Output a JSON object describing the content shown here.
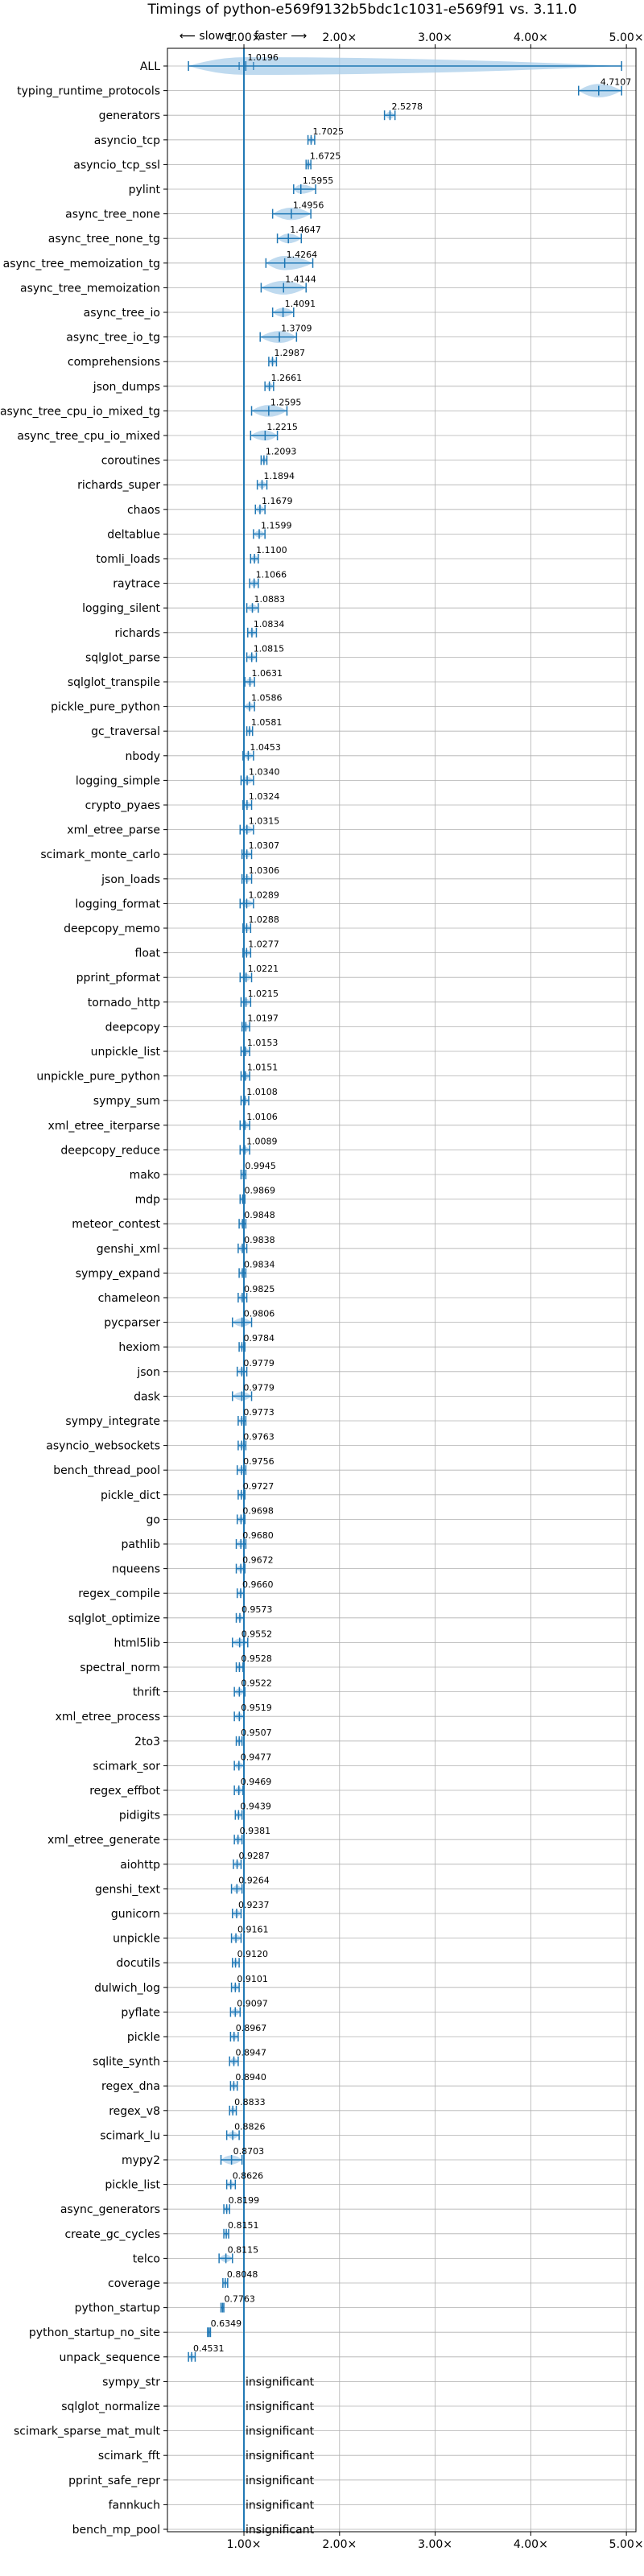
{
  "chart_data": {
    "type": "violin",
    "title": "Timings of python-e569f9132b5bdc1c1031-e569f91 vs. 3.11.0",
    "direction_labels": {
      "slower": "⟵ slower",
      "faster": "faster ⟶"
    },
    "xlim": [
      0.2,
      5.1
    ],
    "xticks": [
      1,
      2,
      3,
      4,
      5
    ],
    "xtick_labels": [
      "1.00×",
      "2.00×",
      "3.00×",
      "4.00×",
      "5.00×"
    ],
    "reference_line": 1.0,
    "grid": true,
    "insignificant_text": "insignificant",
    "benchmarks": [
      {
        "name": "ALL",
        "value": 1.0196,
        "label": "1.0196",
        "lo": 0.42,
        "hi": 4.95,
        "q1": 0.95,
        "q3": 1.1
      },
      {
        "name": "typing_runtime_protocols",
        "value": 4.7107,
        "label": "4.7107",
        "lo": 4.5,
        "hi": 4.95
      },
      {
        "name": "generators",
        "value": 2.5278,
        "label": "2.5278",
        "lo": 2.47,
        "hi": 2.58
      },
      {
        "name": "asyncio_tcp",
        "value": 1.7025,
        "label": "1.7025",
        "lo": 1.67,
        "hi": 1.74
      },
      {
        "name": "asyncio_tcp_ssl",
        "value": 1.6725,
        "label": "1.6725",
        "lo": 1.65,
        "hi": 1.7
      },
      {
        "name": "pylint",
        "value": 1.5955,
        "label": "1.5955",
        "lo": 1.52,
        "hi": 1.75
      },
      {
        "name": "async_tree_none",
        "value": 1.4956,
        "label": "1.4956",
        "lo": 1.3,
        "hi": 1.7
      },
      {
        "name": "async_tree_none_tg",
        "value": 1.4647,
        "label": "1.4647",
        "lo": 1.35,
        "hi": 1.6
      },
      {
        "name": "async_tree_memoization_tg",
        "value": 1.4264,
        "label": "1.4264",
        "lo": 1.23,
        "hi": 1.72
      },
      {
        "name": "async_tree_memoization",
        "value": 1.4144,
        "label": "1.4144",
        "lo": 1.18,
        "hi": 1.65
      },
      {
        "name": "async_tree_io",
        "value": 1.4091,
        "label": "1.4091",
        "lo": 1.3,
        "hi": 1.52
      },
      {
        "name": "async_tree_io_tg",
        "value": 1.3709,
        "label": "1.3709",
        "lo": 1.17,
        "hi": 1.55
      },
      {
        "name": "comprehensions",
        "value": 1.2987,
        "label": "1.2987",
        "lo": 1.26,
        "hi": 1.34
      },
      {
        "name": "json_dumps",
        "value": 1.2661,
        "label": "1.2661",
        "lo": 1.22,
        "hi": 1.31
      },
      {
        "name": "async_tree_cpu_io_mixed_tg",
        "value": 1.2595,
        "label": "1.2595",
        "lo": 1.08,
        "hi": 1.45
      },
      {
        "name": "async_tree_cpu_io_mixed",
        "value": 1.2215,
        "label": "1.2215",
        "lo": 1.07,
        "hi": 1.35
      },
      {
        "name": "coroutines",
        "value": 1.2093,
        "label": "1.2093",
        "lo": 1.18,
        "hi": 1.24
      },
      {
        "name": "richards_super",
        "value": 1.1894,
        "label": "1.1894",
        "lo": 1.14,
        "hi": 1.24
      },
      {
        "name": "chaos",
        "value": 1.1679,
        "label": "1.1679",
        "lo": 1.12,
        "hi": 1.22
      },
      {
        "name": "deltablue",
        "value": 1.1599,
        "label": "1.1599",
        "lo": 1.1,
        "hi": 1.22
      },
      {
        "name": "tomli_loads",
        "value": 1.11,
        "label": "1.1100",
        "lo": 1.07,
        "hi": 1.15
      },
      {
        "name": "raytrace",
        "value": 1.1066,
        "label": "1.1066",
        "lo": 1.06,
        "hi": 1.15
      },
      {
        "name": "logging_silent",
        "value": 1.0883,
        "label": "1.0883",
        "lo": 1.03,
        "hi": 1.15
      },
      {
        "name": "richards",
        "value": 1.0834,
        "label": "1.0834",
        "lo": 1.04,
        "hi": 1.13
      },
      {
        "name": "sqlglot_parse",
        "value": 1.0815,
        "label": "1.0815",
        "lo": 1.03,
        "hi": 1.13
      },
      {
        "name": "sqlglot_transpile",
        "value": 1.0631,
        "label": "1.0631",
        "lo": 1.01,
        "hi": 1.11
      },
      {
        "name": "pickle_pure_python",
        "value": 1.0586,
        "label": "1.0586",
        "lo": 1.0,
        "hi": 1.11
      },
      {
        "name": "gc_traversal",
        "value": 1.0581,
        "label": "1.0581",
        "lo": 1.03,
        "hi": 1.09
      },
      {
        "name": "nbody",
        "value": 1.0453,
        "label": "1.0453",
        "lo": 0.99,
        "hi": 1.1
      },
      {
        "name": "logging_simple",
        "value": 1.034,
        "label": "1.0340",
        "lo": 0.97,
        "hi": 1.1
      },
      {
        "name": "crypto_pyaes",
        "value": 1.0324,
        "label": "1.0324",
        "lo": 0.99,
        "hi": 1.08
      },
      {
        "name": "xml_etree_parse",
        "value": 1.0315,
        "label": "1.0315",
        "lo": 0.96,
        "hi": 1.1
      },
      {
        "name": "scimark_monte_carlo",
        "value": 1.0307,
        "label": "1.0307",
        "lo": 0.98,
        "hi": 1.08
      },
      {
        "name": "json_loads",
        "value": 1.0306,
        "label": "1.0306",
        "lo": 0.98,
        "hi": 1.08
      },
      {
        "name": "logging_format",
        "value": 1.0289,
        "label": "1.0289",
        "lo": 0.96,
        "hi": 1.1
      },
      {
        "name": "deepcopy_memo",
        "value": 1.0288,
        "label": "1.0288",
        "lo": 0.99,
        "hi": 1.07
      },
      {
        "name": "float",
        "value": 1.0277,
        "label": "1.0277",
        "lo": 0.99,
        "hi": 1.07
      },
      {
        "name": "pprint_pformat",
        "value": 1.0221,
        "label": "1.0221",
        "lo": 0.96,
        "hi": 1.08
      },
      {
        "name": "tornado_http",
        "value": 1.0215,
        "label": "1.0215",
        "lo": 0.97,
        "hi": 1.07
      },
      {
        "name": "deepcopy",
        "value": 1.0197,
        "label": "1.0197",
        "lo": 0.98,
        "hi": 1.06
      },
      {
        "name": "unpickle_list",
        "value": 1.0153,
        "label": "1.0153",
        "lo": 0.97,
        "hi": 1.06
      },
      {
        "name": "unpickle_pure_python",
        "value": 1.0151,
        "label": "1.0151",
        "lo": 0.97,
        "hi": 1.06
      },
      {
        "name": "sympy_sum",
        "value": 1.0108,
        "label": "1.0108",
        "lo": 0.97,
        "hi": 1.05
      },
      {
        "name": "xml_etree_iterparse",
        "value": 1.0106,
        "label": "1.0106",
        "lo": 0.96,
        "hi": 1.06
      },
      {
        "name": "deepcopy_reduce",
        "value": 1.0089,
        "label": "1.0089",
        "lo": 0.96,
        "hi": 1.06
      },
      {
        "name": "mako",
        "value": 0.9945,
        "label": "0.9945",
        "lo": 0.97,
        "hi": 1.02
      },
      {
        "name": "mdp",
        "value": 0.9869,
        "label": "0.9869",
        "lo": 0.96,
        "hi": 1.01
      },
      {
        "name": "meteor_contest",
        "value": 0.9848,
        "label": "0.9848",
        "lo": 0.95,
        "hi": 1.02
      },
      {
        "name": "genshi_xml",
        "value": 0.9838,
        "label": "0.9838",
        "lo": 0.94,
        "hi": 1.03
      },
      {
        "name": "sympy_expand",
        "value": 0.9834,
        "label": "0.9834",
        "lo": 0.95,
        "hi": 1.02
      },
      {
        "name": "chameleon",
        "value": 0.9825,
        "label": "0.9825",
        "lo": 0.94,
        "hi": 1.03
      },
      {
        "name": "pycparser",
        "value": 0.9806,
        "label": "0.9806",
        "lo": 0.88,
        "hi": 1.08
      },
      {
        "name": "hexiom",
        "value": 0.9784,
        "label": "0.9784",
        "lo": 0.95,
        "hi": 1.01
      },
      {
        "name": "json",
        "value": 0.9779,
        "label": "0.9779",
        "lo": 0.93,
        "hi": 1.03
      },
      {
        "name": "dask",
        "value": 0.9779,
        "label": "0.9779",
        "lo": 0.88,
        "hi": 1.08
      },
      {
        "name": "sympy_integrate",
        "value": 0.9773,
        "label": "0.9773",
        "lo": 0.94,
        "hi": 1.02
      },
      {
        "name": "asyncio_websockets",
        "value": 0.9763,
        "label": "0.9763",
        "lo": 0.94,
        "hi": 1.02
      },
      {
        "name": "bench_thread_pool",
        "value": 0.9756,
        "label": "0.9756",
        "lo": 0.93,
        "hi": 1.02
      },
      {
        "name": "pickle_dict",
        "value": 0.9727,
        "label": "0.9727",
        "lo": 0.94,
        "hi": 1.01
      },
      {
        "name": "go",
        "value": 0.9698,
        "label": "0.9698",
        "lo": 0.93,
        "hi": 1.01
      },
      {
        "name": "pathlib",
        "value": 0.968,
        "label": "0.9680",
        "lo": 0.92,
        "hi": 1.02
      },
      {
        "name": "nqueens",
        "value": 0.9672,
        "label": "0.9672",
        "lo": 0.92,
        "hi": 1.01
      },
      {
        "name": "regex_compile",
        "value": 0.966,
        "label": "0.9660",
        "lo": 0.93,
        "hi": 1.0
      },
      {
        "name": "sqlglot_optimize",
        "value": 0.9573,
        "label": "0.9573",
        "lo": 0.92,
        "hi": 1.0
      },
      {
        "name": "html5lib",
        "value": 0.9552,
        "label": "0.9552",
        "lo": 0.88,
        "hi": 1.04
      },
      {
        "name": "spectral_norm",
        "value": 0.9528,
        "label": "0.9528",
        "lo": 0.92,
        "hi": 0.99
      },
      {
        "name": "thrift",
        "value": 0.9522,
        "label": "0.9522",
        "lo": 0.9,
        "hi": 1.01
      },
      {
        "name": "xml_etree_process",
        "value": 0.9519,
        "label": "0.9519",
        "lo": 0.9,
        "hi": 1.0
      },
      {
        "name": "2to3",
        "value": 0.9507,
        "label": "0.9507",
        "lo": 0.92,
        "hi": 0.98
      },
      {
        "name": "scimark_sor",
        "value": 0.9477,
        "label": "0.9477",
        "lo": 0.9,
        "hi": 1.0
      },
      {
        "name": "regex_effbot",
        "value": 0.9469,
        "label": "0.9469",
        "lo": 0.9,
        "hi": 0.99
      },
      {
        "name": "pidigits",
        "value": 0.9439,
        "label": "0.9439",
        "lo": 0.91,
        "hi": 0.98
      },
      {
        "name": "xml_etree_generate",
        "value": 0.9381,
        "label": "0.9381",
        "lo": 0.9,
        "hi": 0.98
      },
      {
        "name": "aiohttp",
        "value": 0.9287,
        "label": "0.9287",
        "lo": 0.89,
        "hi": 0.97
      },
      {
        "name": "genshi_text",
        "value": 0.9264,
        "label": "0.9264",
        "lo": 0.87,
        "hi": 0.98
      },
      {
        "name": "gunicorn",
        "value": 0.9237,
        "label": "0.9237",
        "lo": 0.88,
        "hi": 0.97
      },
      {
        "name": "unpickle",
        "value": 0.9161,
        "label": "0.9161",
        "lo": 0.87,
        "hi": 0.97
      },
      {
        "name": "docutils",
        "value": 0.912,
        "label": "0.9120",
        "lo": 0.88,
        "hi": 0.95
      },
      {
        "name": "dulwich_log",
        "value": 0.9101,
        "label": "0.9101",
        "lo": 0.87,
        "hi": 0.95
      },
      {
        "name": "pyflate",
        "value": 0.9097,
        "label": "0.9097",
        "lo": 0.86,
        "hi": 0.96
      },
      {
        "name": "pickle",
        "value": 0.8967,
        "label": "0.8967",
        "lo": 0.86,
        "hi": 0.94
      },
      {
        "name": "sqlite_synth",
        "value": 0.8947,
        "label": "0.8947",
        "lo": 0.85,
        "hi": 0.94
      },
      {
        "name": "regex_dna",
        "value": 0.894,
        "label": "0.8940",
        "lo": 0.86,
        "hi": 0.93
      },
      {
        "name": "regex_v8",
        "value": 0.8833,
        "label": "0.8833",
        "lo": 0.85,
        "hi": 0.92
      },
      {
        "name": "scimark_lu",
        "value": 0.8826,
        "label": "0.8826",
        "lo": 0.82,
        "hi": 0.95
      },
      {
        "name": "mypy2",
        "value": 0.8703,
        "label": "0.8703",
        "lo": 0.76,
        "hi": 0.98
      },
      {
        "name": "pickle_list",
        "value": 0.8626,
        "label": "0.8626",
        "lo": 0.82,
        "hi": 0.91
      },
      {
        "name": "async_generators",
        "value": 0.8199,
        "label": "0.8199",
        "lo": 0.79,
        "hi": 0.85
      },
      {
        "name": "create_gc_cycles",
        "value": 0.8151,
        "label": "0.8151",
        "lo": 0.79,
        "hi": 0.84
      },
      {
        "name": "telco",
        "value": 0.8115,
        "label": "0.8115",
        "lo": 0.74,
        "hi": 0.88
      },
      {
        "name": "coverage",
        "value": 0.8048,
        "label": "0.8048",
        "lo": 0.78,
        "hi": 0.83
      },
      {
        "name": "python_startup",
        "value": 0.7763,
        "label": "0.7763",
        "lo": 0.76,
        "hi": 0.79
      },
      {
        "name": "python_startup_no_site",
        "value": 0.6349,
        "label": "0.6349",
        "lo": 0.62,
        "hi": 0.65
      },
      {
        "name": "unpack_sequence",
        "value": 0.4531,
        "label": "0.4531",
        "lo": 0.42,
        "hi": 0.49
      },
      {
        "name": "sympy_str",
        "insignificant": true
      },
      {
        "name": "sqlglot_normalize",
        "insignificant": true
      },
      {
        "name": "scimark_sparse_mat_mult",
        "insignificant": true
      },
      {
        "name": "scimark_fft",
        "insignificant": true
      },
      {
        "name": "pprint_safe_repr",
        "insignificant": true
      },
      {
        "name": "fannkuch",
        "insignificant": true
      },
      {
        "name": "bench_mp_pool",
        "insignificant": true
      }
    ],
    "colors": {
      "violin": "#a9cde9",
      "line": "#1f77b4",
      "grid": "#b0b0b0",
      "outlier": "#d62728"
    }
  }
}
